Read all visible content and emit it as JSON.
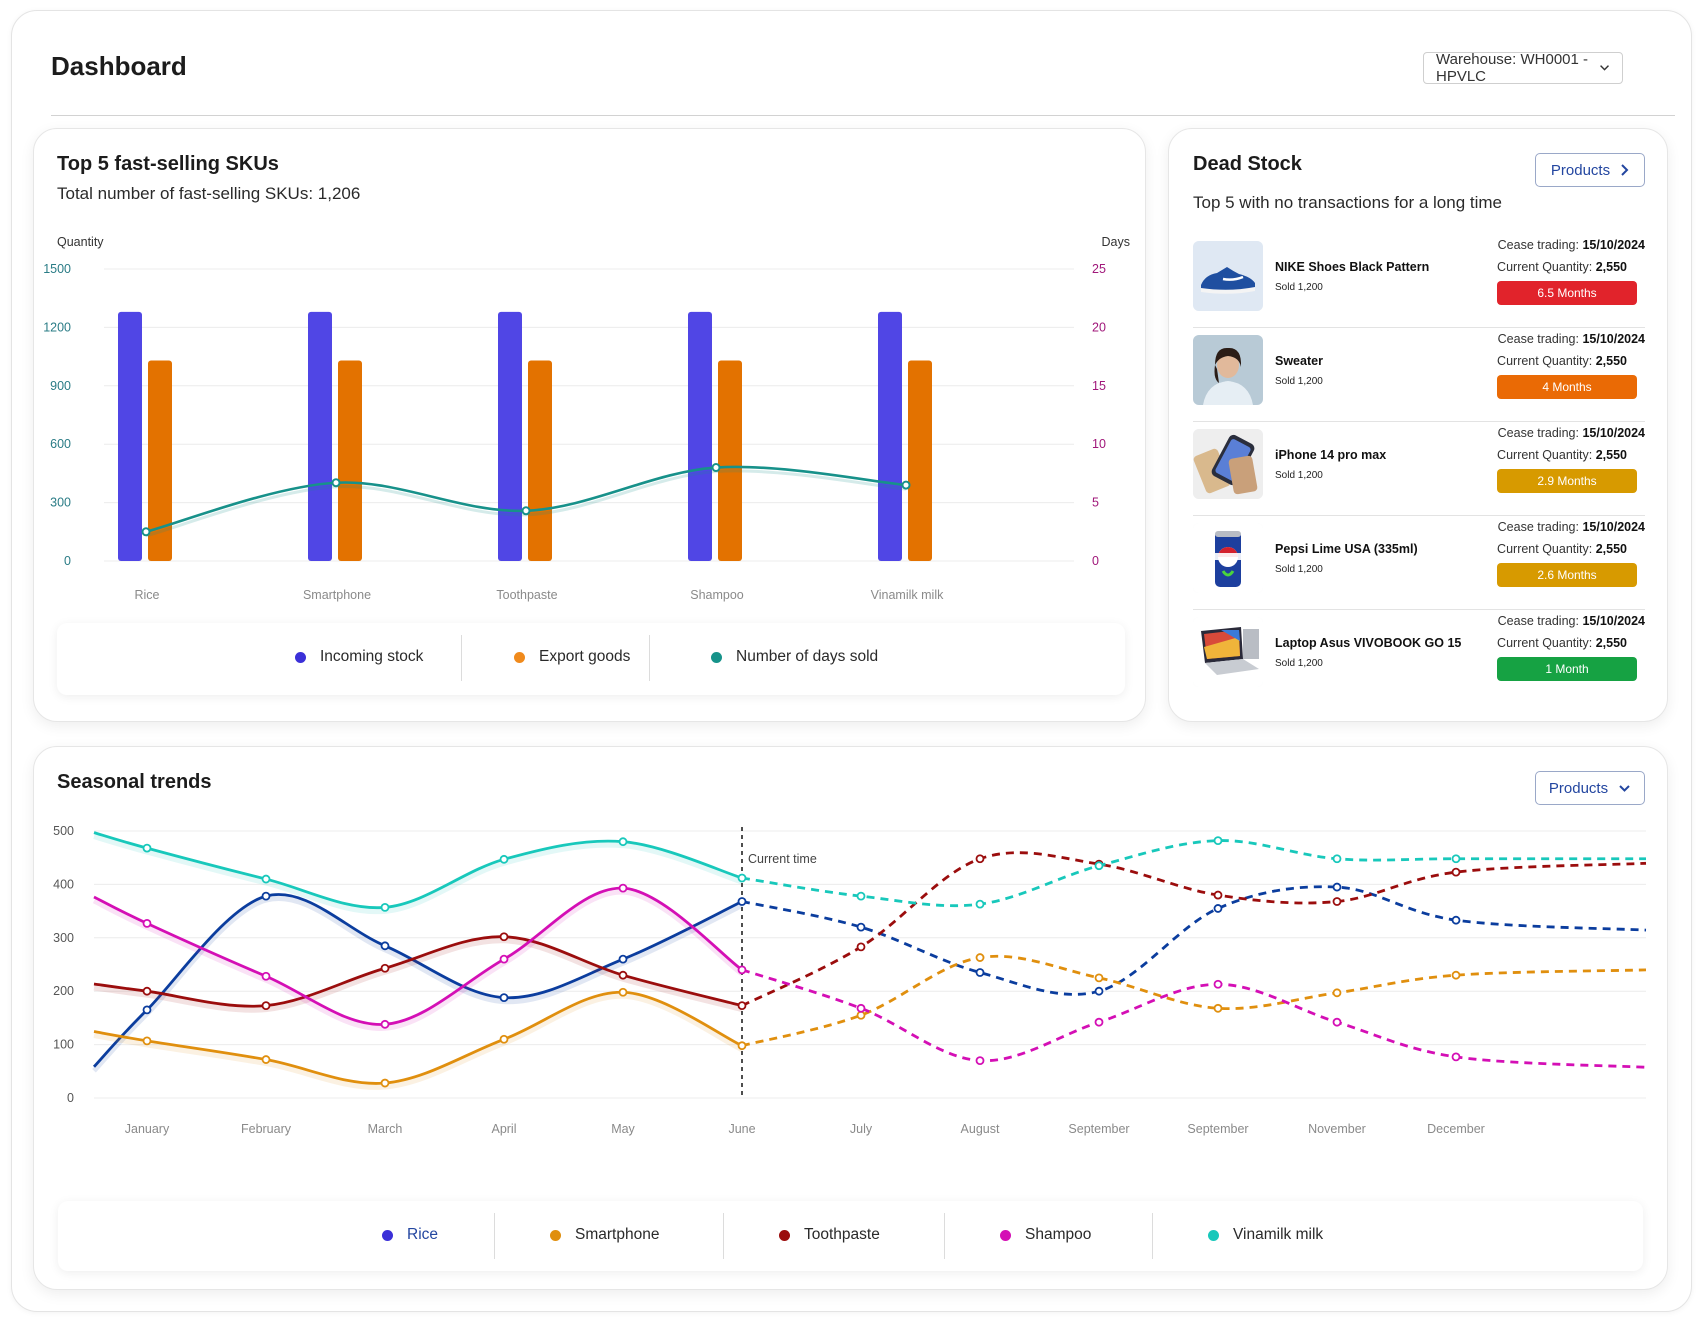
{
  "header": {
    "title": "Dashboard",
    "warehouse_label": "Warehouse: WH0001 - HPVLC"
  },
  "fast_selling": {
    "title": "Top 5 fast-selling SKUs",
    "subtitle": "Total number of fast-selling SKUs: 1,206",
    "legend": [
      "Incoming stock",
      "Export goods",
      "Number of days sold"
    ]
  },
  "dead_stock": {
    "title": "Dead Stock",
    "subtitle": "Top 5 with no transactions for a long time",
    "button_label": "Products",
    "items": [
      {
        "name": "NIKE Shoes Black Pattern",
        "sold": "Sold 1,200",
        "cease_label": "Cease trading:",
        "cease_date": "15/10/2024",
        "qty_label": "Current Quantity:",
        "qty": "2,550",
        "badge": "6.5 Months",
        "badge_color": "#e1232b",
        "icon": "shoe-image"
      },
      {
        "name": "Sweater",
        "sold": "Sold 1,200",
        "cease_label": "Cease trading:",
        "cease_date": "15/10/2024",
        "qty_label": "Current Quantity:",
        "qty": "2,550",
        "badge": "4 Months",
        "badge_color": "#ea6a05",
        "icon": "person-image"
      },
      {
        "name": "iPhone 14 pro max",
        "sold": "Sold 1,200",
        "cease_label": "Cease trading:",
        "cease_date": "15/10/2024",
        "qty_label": "Current Quantity:",
        "qty": "2,550",
        "badge": "2.9 Months",
        "badge_color": "#d79a00",
        "icon": "phone-image"
      },
      {
        "name": "Pepsi Lime USA (335ml)",
        "sold": "Sold 1,200",
        "cease_label": "Cease trading:",
        "cease_date": "15/10/2024",
        "qty_label": "Current Quantity:",
        "qty": "2,550",
        "badge": "2.6 Months",
        "badge_color": "#d79a00",
        "icon": "can-image"
      },
      {
        "name": "Laptop Asus VIVOBOOK GO 15",
        "sold": "Sold 1,200",
        "cease_label": "Cease trading:",
        "cease_date": "15/10/2024",
        "qty_label": "Current Quantity:",
        "qty": "2,550",
        "badge": "1 Month",
        "badge_color": "#16a243",
        "icon": "laptop-image"
      }
    ]
  },
  "seasonal": {
    "title": "Seasonal trends",
    "button_label": "Products",
    "current_time_label": "Current time"
  },
  "chart_data": [
    {
      "type": "bar",
      "title": "Top 5 fast-selling SKUs",
      "ylabel": "Quantity",
      "y2label": "Days",
      "ylim": [
        0,
        1500
      ],
      "y2lim": [
        0,
        25
      ],
      "yticks": [
        "0",
        "300",
        "600",
        "900",
        "1200",
        "1500"
      ],
      "y2ticks": [
        "0",
        "5",
        "10",
        "15",
        "20",
        "25"
      ],
      "categories": [
        "Rice",
        "Smartphone",
        "Toothpaste",
        "Shampoo",
        "Vinamilk milk"
      ],
      "series": [
        {
          "name": "Incoming stock",
          "type": "bar",
          "color": "#5046e5",
          "values": [
            1280,
            1280,
            1280,
            1280,
            1280
          ]
        },
        {
          "name": "Export goods",
          "type": "bar",
          "color": "#e37200",
          "values": [
            1030,
            1030,
            1030,
            1030,
            1030
          ]
        },
        {
          "name": "Number of days sold",
          "type": "line",
          "axis": "right",
          "color": "#17918a",
          "values": [
            2.5,
            6.7,
            4.3,
            8.0,
            6.5
          ]
        }
      ],
      "grid": true,
      "legend": "bottom"
    },
    {
      "type": "line",
      "title": "Seasonal trends",
      "ylim": [
        0,
        500
      ],
      "yticks": [
        "0",
        "100",
        "200",
        "300",
        "400",
        "500"
      ],
      "categories": [
        "January",
        "February",
        "March",
        "April",
        "May",
        "June",
        "July",
        "August",
        "September",
        "September",
        "November",
        "December"
      ],
      "current_index": 5,
      "series": [
        {
          "name": "Rice",
          "color": "#0b3d9e",
          "values": [
            165,
            378,
            285,
            188,
            260,
            368,
            320,
            235,
            200,
            355,
            395,
            333
          ]
        },
        {
          "name": "Smartphone",
          "color": "#e08f0e",
          "values": [
            107,
            72,
            28,
            110,
            198,
            98,
            155,
            263,
            225,
            168,
            197,
            230
          ]
        },
        {
          "name": "Toothpaste",
          "color": "#9b0d0d",
          "values": [
            200,
            173,
            243,
            302,
            230,
            173,
            283,
            448,
            438,
            380,
            368,
            423
          ]
        },
        {
          "name": "Shampoo",
          "color": "#d40fb5",
          "values": [
            327,
            228,
            138,
            260,
            393,
            240,
            168,
            70,
            142,
            213,
            142,
            77
          ]
        },
        {
          "name": "Vinamilk milk",
          "color": "#18c8bb",
          "values": [
            468,
            410,
            357,
            447,
            480,
            412,
            378,
            363,
            435,
            482,
            448,
            448
          ]
        }
      ],
      "grid": true,
      "legend": "bottom"
    }
  ]
}
